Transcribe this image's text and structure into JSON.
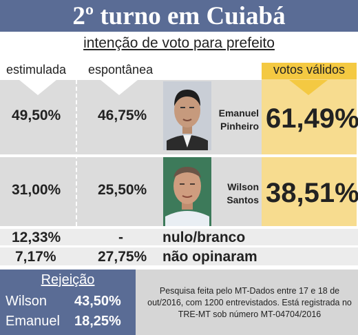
{
  "title": "2º turno em Cuiabá",
  "subtitle": "intenção de voto para prefeito",
  "headers": {
    "estimulada": "estimulada",
    "espontanea": "espontânea",
    "validos": "votos válidos"
  },
  "candidates": [
    {
      "name_line1": "Emanuel",
      "name_line2": "Pinheiro",
      "estimulada": "49,50%",
      "espontanea": "46,75%",
      "validos": "61,49%"
    },
    {
      "name_line1": "Wilson",
      "name_line2": "Santos",
      "estimulada": "31,00%",
      "espontanea": "25,50%",
      "validos": "38,51%"
    }
  ],
  "other_rows": [
    {
      "estimulada": "12,33%",
      "espontanea": "-",
      "label": "nulo/branco"
    },
    {
      "estimulada": "7,17%",
      "espontanea": "27,75%",
      "label": "não opinaram"
    }
  ],
  "rejection": {
    "title": "Rejeição",
    "items": [
      {
        "name": "Wilson",
        "value": "43,50%"
      },
      {
        "name": "Emanuel",
        "value": "18,25%"
      }
    ]
  },
  "note": "Pesquisa feita pelo MT-Dados entre 17 e 18 de out/2016, com 1200 entrevistados. Está registrada no TRE-MT sob número MT-04704/2016",
  "colors": {
    "title_bg": "#5a6c95",
    "votes_bg": "#f7dc8f",
    "votes_header": "#f4c942",
    "row_bg": "#dcdcdc"
  }
}
